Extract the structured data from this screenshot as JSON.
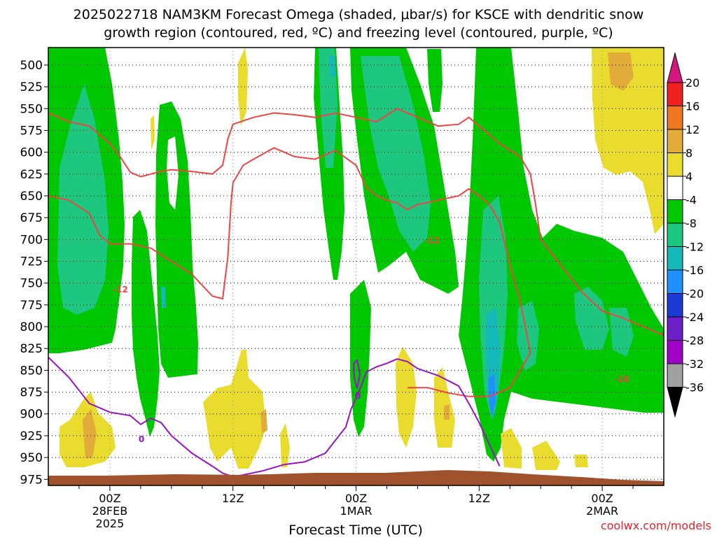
{
  "chart_data": {
    "type": "heatmap",
    "title_line1": "2025022718 NAM3KM Forecast Omega (shaded, μbar/s) for KSCE with dendritic snow",
    "title_line2": "growth region (contoured, red, ºC) and freezing level (contoured, purple, ºC)",
    "xlabel": "Forecast Time (UTC)",
    "credit": "coolwx.com/models",
    "x_range_hours": [
      -6,
      54
    ],
    "x_ticks": [
      {
        "h": 0,
        "label": "00Z",
        "sub1": "28FEB",
        "sub2": "2025"
      },
      {
        "h": 12,
        "label": "12Z",
        "sub1": "",
        "sub2": ""
      },
      {
        "h": 24,
        "label": "00Z",
        "sub1": "1MAR",
        "sub2": ""
      },
      {
        "h": 36,
        "label": "12Z",
        "sub1": "",
        "sub2": ""
      },
      {
        "h": 48,
        "label": "00Z",
        "sub1": "2MAR",
        "sub2": ""
      }
    ],
    "y_range_mb": [
      480,
      982
    ],
    "y_ticks": [
      500,
      525,
      550,
      575,
      600,
      625,
      650,
      675,
      700,
      725,
      750,
      775,
      800,
      825,
      850,
      875,
      900,
      925,
      950,
      975
    ],
    "colorbar_labels": [
      "20",
      "16",
      "12",
      "8",
      "4",
      "-4",
      "-8",
      "-12",
      "-16",
      "-20",
      "-24",
      "-28",
      "-32",
      "-36"
    ],
    "colorbar_colors": [
      "#d7157e",
      "#ee2020",
      "#ee7621",
      "#e2ac3a",
      "#eadb2f",
      "#ffffff",
      "#00c800",
      "#1ec77f",
      "#14b8b8",
      "#1e90ff",
      "#1c3bd6",
      "#6a1fc7",
      "#a000c8",
      "#a0a0a0",
      "#000000"
    ],
    "contour_labels": {
      "red_minus12_a": "-12",
      "red_minus12_b": "-12",
      "red_minus18": "-18",
      "purple_zero_a": "0",
      "purple_zero_b": "0"
    },
    "colors": {
      "red": "#ee4444",
      "purple": "#9a12c4",
      "ground": "#a0522d"
    },
    "red_contour_upper": [
      [
        -6,
        555
      ],
      [
        -4,
        565
      ],
      [
        -2,
        570
      ],
      [
        0,
        590
      ],
      [
        1,
        605
      ],
      [
        2,
        623
      ],
      [
        3,
        628
      ],
      [
        4,
        625
      ],
      [
        5,
        622
      ],
      [
        6,
        620
      ],
      [
        8,
        622
      ],
      [
        10,
        625
      ],
      [
        11,
        615
      ],
      [
        11.5,
        585
      ],
      [
        12,
        568
      ],
      [
        14,
        560
      ],
      [
        16,
        555
      ],
      [
        18,
        557
      ],
      [
        20,
        560
      ],
      [
        22,
        555
      ],
      [
        24,
        560
      ],
      [
        26,
        565
      ],
      [
        28,
        550
      ],
      [
        30,
        560
      ],
      [
        32,
        570
      ],
      [
        34,
        568
      ],
      [
        35,
        560
      ],
      [
        36,
        570
      ],
      [
        38,
        590
      ],
      [
        40,
        605
      ],
      [
        41,
        625
      ],
      [
        41.5,
        660
      ],
      [
        42,
        700
      ],
      [
        44,
        730
      ],
      [
        46,
        760
      ],
      [
        48,
        782
      ],
      [
        50,
        790
      ],
      [
        52,
        800
      ],
      [
        54,
        810
      ]
    ],
    "red_contour_lower": [
      [
        -6,
        650
      ],
      [
        -4,
        655
      ],
      [
        -2,
        670
      ],
      [
        -1,
        695
      ],
      [
        0,
        705
      ],
      [
        2,
        705
      ],
      [
        4,
        710
      ],
      [
        6,
        725
      ],
      [
        8,
        740
      ],
      [
        10,
        765
      ],
      [
        11,
        768
      ],
      [
        11.5,
        720
      ],
      [
        11.8,
        660
      ],
      [
        12,
        635
      ],
      [
        13,
        615
      ],
      [
        14,
        608
      ],
      [
        16,
        595
      ],
      [
        18,
        605
      ],
      [
        20,
        608
      ],
      [
        22,
        598
      ],
      [
        24,
        615
      ],
      [
        25,
        640
      ],
      [
        26,
        650
      ],
      [
        27,
        655
      ],
      [
        28,
        658
      ],
      [
        29,
        666
      ],
      [
        30,
        660
      ],
      [
        32,
        655
      ],
      [
        34,
        650
      ],
      [
        35,
        642
      ],
      [
        36,
        650
      ],
      [
        37,
        660
      ],
      [
        38,
        680
      ],
      [
        39,
        730
      ],
      [
        40,
        770
      ],
      [
        40.5,
        800
      ],
      [
        41,
        830
      ],
      [
        40,
        850
      ],
      [
        39,
        870
      ],
      [
        37,
        880
      ],
      [
        35,
        880
      ],
      [
        33,
        876
      ],
      [
        31,
        870
      ],
      [
        29,
        870
      ]
    ],
    "purple_contour": [
      [
        -6,
        835
      ],
      [
        -4,
        858
      ],
      [
        -2,
        888
      ],
      [
        0,
        898
      ],
      [
        2,
        902
      ],
      [
        3,
        912
      ],
      [
        4,
        905
      ],
      [
        5,
        910
      ],
      [
        6,
        925
      ],
      [
        8,
        945
      ],
      [
        10,
        960
      ],
      [
        11,
        968
      ],
      [
        12,
        972
      ],
      [
        13,
        970
      ],
      [
        15,
        965
      ],
      [
        17,
        958
      ],
      [
        19,
        955
      ],
      [
        21,
        945
      ],
      [
        22,
        930
      ],
      [
        23,
        915
      ],
      [
        23.5,
        895
      ],
      [
        24,
        882
      ],
      [
        24.5,
        868
      ],
      [
        25,
        852
      ],
      [
        26,
        846
      ],
      [
        27,
        842
      ],
      [
        28,
        837
      ],
      [
        29,
        840
      ],
      [
        30,
        848
      ],
      [
        32,
        856
      ],
      [
        34,
        868
      ],
      [
        35,
        888
      ],
      [
        36,
        910
      ],
      [
        37,
        935
      ],
      [
        38,
        960
      ]
    ]
  }
}
